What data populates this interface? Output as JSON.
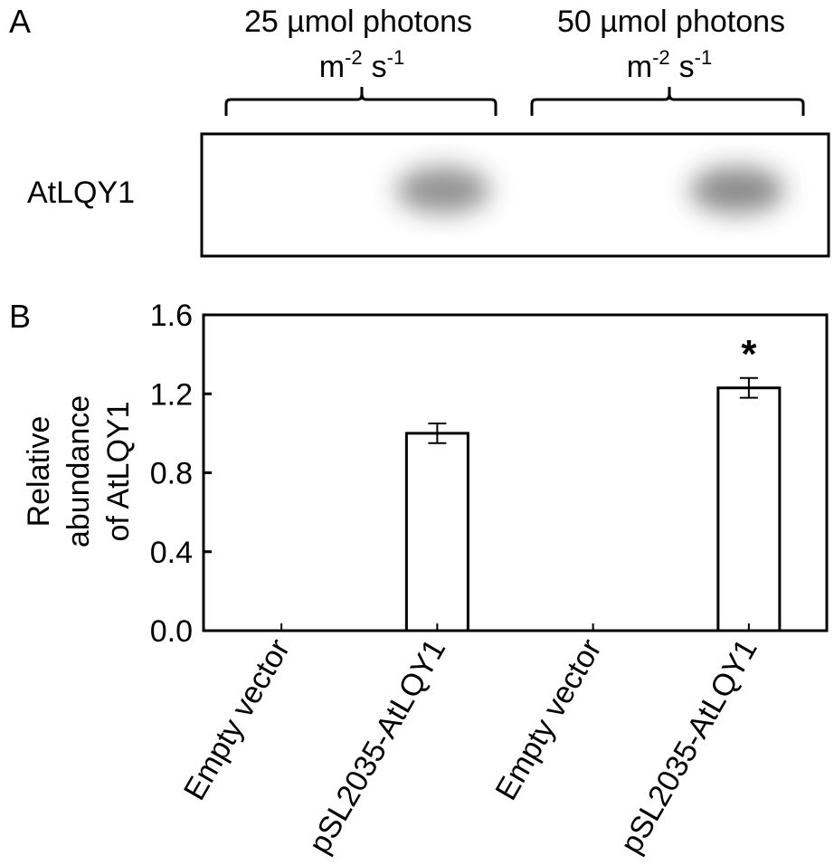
{
  "panel_a": {
    "label": "A",
    "conditions": [
      {
        "line1": "25 µmol photons",
        "unit_m": "m",
        "exp_m": "-2",
        "unit_s": "s",
        "exp_s": "-1"
      },
      {
        "line1": "50 µmol photons",
        "unit_m": "m",
        "exp_m": "-2",
        "unit_s": "s",
        "exp_s": "-1"
      }
    ],
    "blot_label": "AtLQY1",
    "band_intensities": [
      0,
      1.0,
      0,
      1.23
    ]
  },
  "panel_b": {
    "label": "B"
  },
  "chart_data": {
    "type": "bar",
    "categories": [
      "Empty vector",
      "pSL2035-AtLQY1",
      "Empty vector",
      "pSL2035-AtLQY1"
    ],
    "values": [
      0,
      1.0,
      0,
      1.23
    ],
    "errors": [
      0,
      0.05,
      0,
      0.05
    ],
    "significance": [
      "",
      "",
      "",
      "*"
    ],
    "ylabel_line1": "Relative",
    "ylabel_line2": "abundance",
    "ylabel_line3": "of AtLQY1",
    "ylim": [
      0,
      1.6
    ],
    "yticks": [
      "0.0",
      "0.4",
      "0.8",
      "1.2",
      "1.6"
    ],
    "grid": false,
    "bar_color": "#ffffff"
  }
}
